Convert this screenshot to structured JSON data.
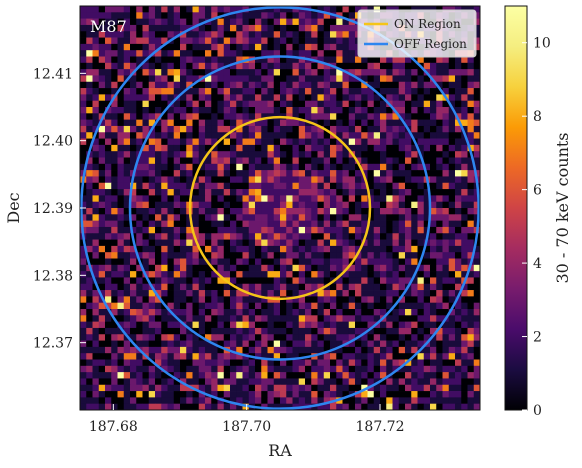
{
  "chart_data": {
    "type": "heatmap",
    "title": "",
    "source_label": "M87",
    "xlabel": "RA",
    "ylabel": "Dec",
    "xlim": [
      187.675,
      187.735
    ],
    "ylim": [
      12.36,
      12.42
    ],
    "x_ticks": [
      {
        "value": 187.68,
        "label": "187.68"
      },
      {
        "value": 187.7,
        "label": "187.70"
      },
      {
        "value": 187.72,
        "label": "187.72"
      }
    ],
    "y_ticks": [
      {
        "value": 12.37,
        "label": "12.37"
      },
      {
        "value": 12.38,
        "label": "12.38"
      },
      {
        "value": 12.39,
        "label": "12.39"
      },
      {
        "value": 12.4,
        "label": "12.40"
      },
      {
        "value": 12.41,
        "label": "12.41"
      }
    ],
    "grid": 64,
    "colormap": "inferno",
    "colorbar": {
      "label": "30 - 70 keV counts",
      "range": [
        0,
        11
      ],
      "ticks": [
        {
          "value": 0,
          "label": "0"
        },
        {
          "value": 2,
          "label": "2"
        },
        {
          "value": 4,
          "label": "4"
        },
        {
          "value": 6,
          "label": "6"
        },
        {
          "value": 8,
          "label": "8"
        },
        {
          "value": 10,
          "label": "10"
        }
      ]
    },
    "peak": {
      "ra": 187.705,
      "dec": 12.39,
      "counts": 11
    },
    "regions": [
      {
        "name": "ON Region",
        "kind": "circle",
        "center": [
          187.705,
          12.39
        ],
        "radius": 0.0135,
        "color": "#f5c518"
      },
      {
        "name": "OFF Region",
        "kind": "annulus",
        "center": [
          187.705,
          12.39
        ],
        "radius": 0.0225,
        "color": "#2e86f0"
      },
      {
        "name": "OFF Region",
        "kind": "annulus",
        "center": [
          187.705,
          12.39
        ],
        "radius": 0.0298,
        "color": "#2e86f0"
      }
    ],
    "legend": {
      "placement": "top-right",
      "entries": [
        {
          "label": "ON Region",
          "color": "#f5c518"
        },
        {
          "label": "OFF Region",
          "color": "#2e86f0"
        }
      ]
    }
  }
}
